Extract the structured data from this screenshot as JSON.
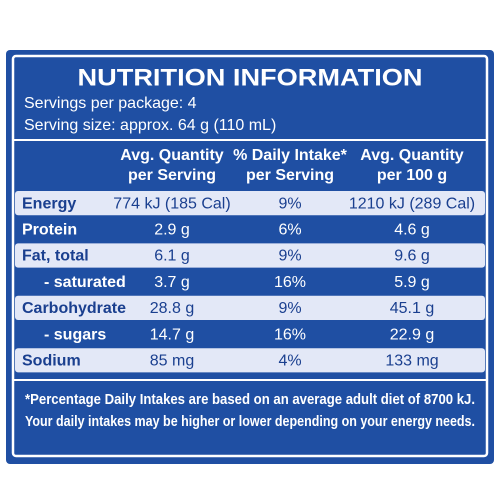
{
  "header": {
    "title": "NUTRITION INFORMATION",
    "servings": "Servings per package: 4",
    "serving_size": "Serving size: approx. 64 g (110 mL)"
  },
  "table": {
    "columns": [
      [
        "Avg. Quantity",
        "per Serving"
      ],
      [
        "% Daily Intake*",
        "per Serving"
      ],
      [
        "Avg. Quantity",
        "per 100 g"
      ]
    ],
    "rows": [
      [
        "Energy",
        "774 kJ (185 Cal)",
        "9%",
        "1210 kJ (289 Cal)"
      ],
      [
        "Protein",
        "2.9 g",
        "6%",
        "4.6 g"
      ],
      [
        "Fat, total",
        "6.1 g",
        "9%",
        "9.6 g"
      ],
      [
        "- saturated",
        "3.7 g",
        "16%",
        "5.9 g"
      ],
      [
        "Carbohydrate",
        "28.8 g",
        "9%",
        "45.1 g"
      ],
      [
        "- sugars",
        "14.7 g",
        "16%",
        "22.9 g"
      ],
      [
        "Sodium",
        "85 mg",
        "4%",
        "133 mg"
      ]
    ]
  },
  "footer": [
    "*Percentage Daily Intakes are based on an average adult diet of 8700 kJ.",
    "Your daily intakes may be higher or lower depending on your energy needs."
  ]
}
